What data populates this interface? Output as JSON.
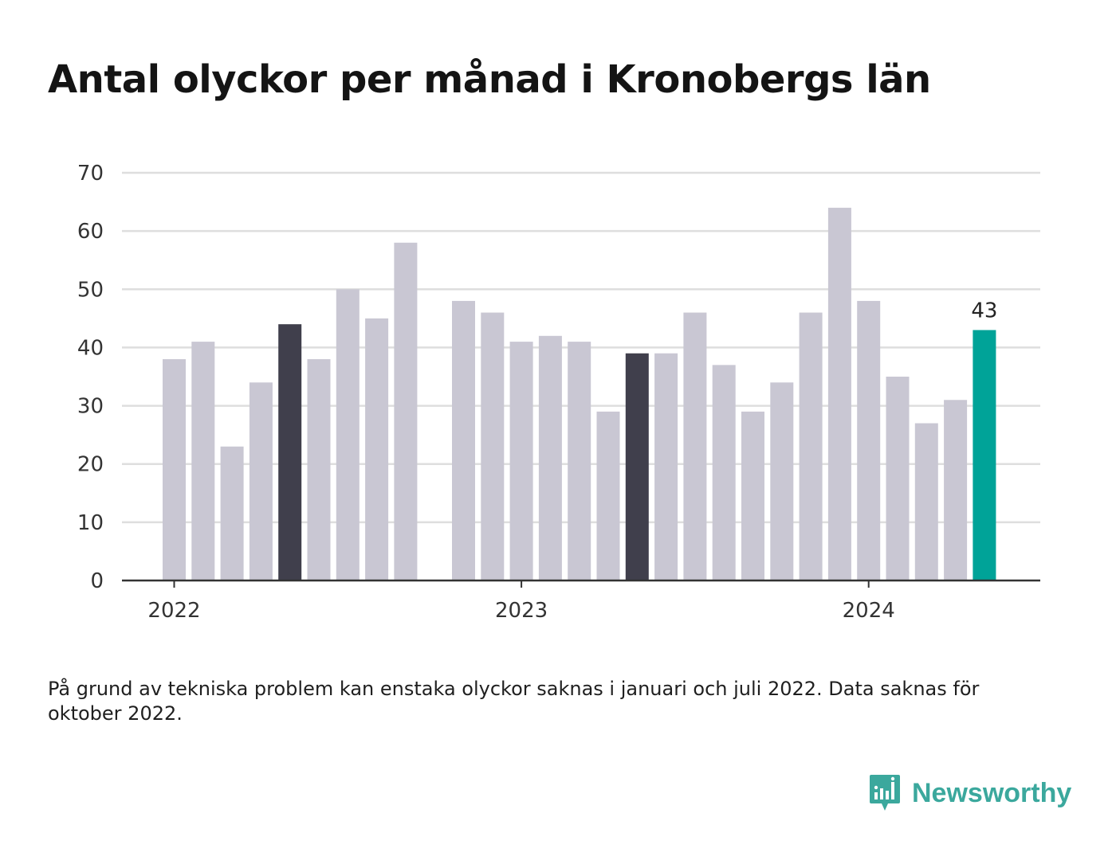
{
  "title": "Antal olyckor per månad i Kronobergs län",
  "footnote": "På grund av tekniska problem kan enstaka olyckor saknas i januari och juli 2022. Data saknas för oktober 2022.",
  "brand": {
    "name": "Newsworthy",
    "icon": "bar-chart-speech-bubble-icon"
  },
  "colors": {
    "bar_default": "#c9c7d3",
    "bar_dark": "#403f4c",
    "bar_highlight": "#00a398",
    "grid": "#dedede",
    "axis": "#333333"
  },
  "chart_data": {
    "type": "bar",
    "xlabel": "",
    "ylabel": "",
    "ylim": [
      0,
      70
    ],
    "yticks": [
      0,
      10,
      20,
      30,
      40,
      50,
      60,
      70
    ],
    "xticks": [
      {
        "label": "2022",
        "month": "2022-01"
      },
      {
        "label": "2023",
        "month": "2023-01"
      },
      {
        "label": "2024",
        "month": "2024-01"
      }
    ],
    "grid": true,
    "series": [
      {
        "data": [
          {
            "month": "2022-01",
            "value": 38
          },
          {
            "month": "2022-02",
            "value": 41
          },
          {
            "month": "2022-03",
            "value": 23
          },
          {
            "month": "2022-04",
            "value": 34
          },
          {
            "month": "2022-05",
            "value": 44,
            "style": "dark"
          },
          {
            "month": "2022-06",
            "value": 38
          },
          {
            "month": "2022-07",
            "value": 50
          },
          {
            "month": "2022-08",
            "value": 45
          },
          {
            "month": "2022-09",
            "value": 58
          },
          {
            "month": "2022-10",
            "value": null
          },
          {
            "month": "2022-11",
            "value": 48
          },
          {
            "month": "2022-12",
            "value": 46
          },
          {
            "month": "2023-01",
            "value": 41
          },
          {
            "month": "2023-02",
            "value": 42
          },
          {
            "month": "2023-03",
            "value": 41
          },
          {
            "month": "2023-04",
            "value": 29
          },
          {
            "month": "2023-05",
            "value": 39,
            "style": "dark"
          },
          {
            "month": "2023-06",
            "value": 39
          },
          {
            "month": "2023-07",
            "value": 46
          },
          {
            "month": "2023-08",
            "value": 37
          },
          {
            "month": "2023-09",
            "value": 29
          },
          {
            "month": "2023-10",
            "value": 34
          },
          {
            "month": "2023-11",
            "value": 46
          },
          {
            "month": "2023-12",
            "value": 64
          },
          {
            "month": "2024-01",
            "value": 48
          },
          {
            "month": "2024-02",
            "value": 35
          },
          {
            "month": "2024-03",
            "value": 27
          },
          {
            "month": "2024-04",
            "value": 31
          },
          {
            "month": "2024-05",
            "value": 43,
            "style": "highlight",
            "label": "43"
          }
        ]
      }
    ]
  }
}
